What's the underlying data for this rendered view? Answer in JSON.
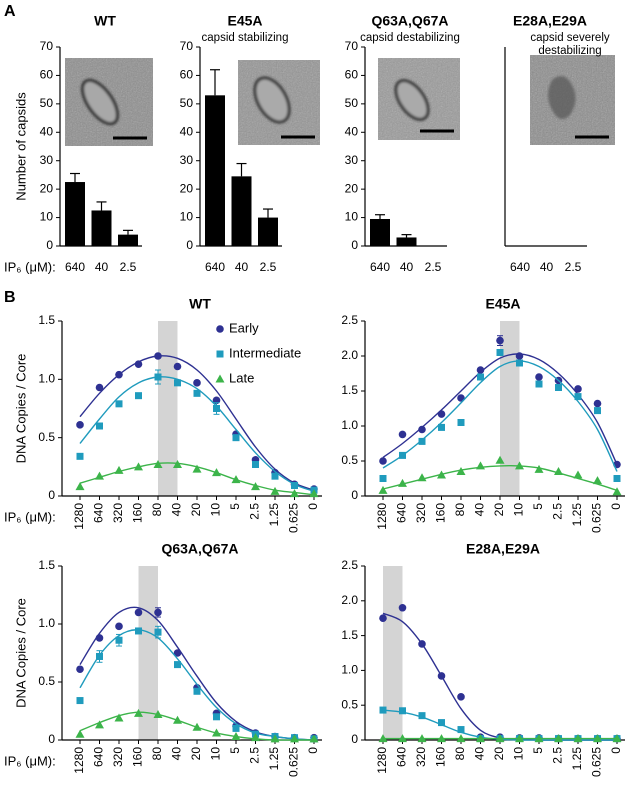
{
  "panel_labels": [
    "A",
    "B"
  ],
  "chart_data": [
    {
      "type": "bar",
      "title": "WT",
      "y_label": "Number of capsids",
      "x_label": "IP₆ (μM):",
      "categories": [
        "640",
        "40",
        "2.5"
      ],
      "values": [
        22.5,
        12.5,
        4
      ],
      "errors": [
        3,
        3,
        1.5
      ],
      "color": "#000000",
      "ylim": [
        0,
        70
      ],
      "yticks": [
        0,
        10,
        20,
        30,
        40,
        50,
        60,
        70
      ]
    },
    {
      "type": "bar",
      "title": "E45A",
      "subtitle": "capsid stabilizing",
      "categories": [
        "640",
        "40",
        "2.5"
      ],
      "values": [
        53,
        24.5,
        10
      ],
      "errors": [
        9,
        4.5,
        3
      ],
      "color": "#000000",
      "ylim": [
        0,
        70
      ],
      "yticks": [
        0,
        10,
        20,
        30,
        40,
        50,
        60,
        70
      ]
    },
    {
      "type": "bar",
      "title": "Q63A,Q67A",
      "subtitle": "capsid destabilizing",
      "categories": [
        "640",
        "40",
        "2.5"
      ],
      "values": [
        9.5,
        3,
        0
      ],
      "errors": [
        1.5,
        1,
        null
      ],
      "color": "#000000",
      "ylim": [
        0,
        70
      ],
      "yticks": [
        0,
        10,
        20,
        30,
        40,
        50,
        60,
        70
      ]
    },
    {
      "type": "bar",
      "title": "E28A,E29A",
      "subtitle": "capsid severely destabilizing",
      "categories": [
        "640",
        "40",
        "2.5"
      ],
      "values": [
        0,
        0,
        0
      ],
      "color": "#000000",
      "ylim": [
        0,
        70
      ]
    },
    {
      "type": "line",
      "title": "WT",
      "y_label": "DNA Copies / Core",
      "x_label": "IP₆ (μM):",
      "legend": true,
      "highlight": [
        "80",
        "40"
      ],
      "categories": [
        "1280",
        "640",
        "320",
        "160",
        "80",
        "40",
        "20",
        "10",
        "5",
        "2.5",
        "1.25",
        "0.625",
        "0"
      ],
      "ylim": [
        0,
        1.5
      ],
      "yticks": [
        0,
        0.5,
        {
          "value": 1,
          "label": "1.0"
        },
        1.5
      ],
      "series": [
        {
          "name": "Early",
          "color": "#2e3192",
          "marker": "circle",
          "values": [
            0.61,
            0.93,
            1.04,
            1.13,
            1.2,
            1.11,
            0.97,
            0.82,
            0.53,
            0.31,
            0.2,
            0.1,
            0.06
          ],
          "fit": [
            0.68,
            0.88,
            1.04,
            1.15,
            1.2,
            1.18,
            1.08,
            0.9,
            0.66,
            0.42,
            0.23,
            0.11,
            0.05
          ]
        },
        {
          "name": "Intermediate",
          "color": "#1f9bbd",
          "marker": "square",
          "values": [
            0.34,
            0.6,
            0.79,
            0.86,
            1.02,
            0.97,
            0.88,
            0.75,
            0.5,
            0.27,
            0.17,
            0.09,
            0.05
          ],
          "errors": [
            null,
            null,
            null,
            null,
            0.06,
            null,
            null,
            0.05,
            null,
            null,
            null,
            null,
            null
          ],
          "fit": [
            0.45,
            0.66,
            0.85,
            0.97,
            1.02,
            1.0,
            0.92,
            0.77,
            0.57,
            0.37,
            0.21,
            0.1,
            0.04
          ]
        },
        {
          "name": "Late",
          "color": "#3cb44a",
          "marker": "triangle",
          "values": [
            0.08,
            0.17,
            0.22,
            0.25,
            0.27,
            0.27,
            0.23,
            0.2,
            0.14,
            0.08,
            0.04,
            0.02,
            0.02
          ],
          "fit": [
            0.11,
            0.16,
            0.21,
            0.25,
            0.28,
            0.28,
            0.25,
            0.2,
            0.14,
            0.09,
            0.05,
            0.03,
            0.01
          ]
        }
      ]
    },
    {
      "type": "line",
      "title": "E45A",
      "legend": false,
      "highlight": [
        "20",
        "10"
      ],
      "categories": [
        "1280",
        "640",
        "320",
        "160",
        "80",
        "40",
        "20",
        "10",
        "5",
        "2.5",
        "1.25",
        "0.625",
        "0"
      ],
      "ylim": [
        0,
        2.5
      ],
      "yticks": [
        0,
        0.5,
        {
          "value": 1,
          "label": "1.0"
        },
        1.5,
        {
          "value": 2,
          "label": "2.0"
        },
        2.5
      ],
      "series": [
        {
          "name": "Early",
          "color": "#2e3192",
          "marker": "circle",
          "values": [
            0.5,
            0.88,
            0.95,
            1.17,
            1.4,
            1.8,
            2.22,
            2.0,
            1.7,
            1.65,
            1.53,
            1.32,
            0.45
          ],
          "errors": [
            null,
            null,
            null,
            null,
            null,
            null,
            0.07,
            null,
            null,
            null,
            null,
            null,
            null
          ],
          "fit": [
            0.55,
            0.75,
            0.98,
            1.23,
            1.5,
            1.77,
            1.97,
            2.03,
            1.95,
            1.75,
            1.45,
            1.05,
            0.45
          ]
        },
        {
          "name": "Intermediate",
          "color": "#1f9bbd",
          "marker": "square",
          "values": [
            0.25,
            0.58,
            0.78,
            0.98,
            1.05,
            1.7,
            2.05,
            1.9,
            1.6,
            1.55,
            1.42,
            1.22,
            0.25
          ],
          "fit": [
            0.4,
            0.58,
            0.8,
            1.05,
            1.33,
            1.62,
            1.85,
            1.93,
            1.85,
            1.65,
            1.35,
            0.95,
            0.35
          ]
        },
        {
          "name": "Late",
          "color": "#3cb44a",
          "marker": "triangle",
          "values": [
            0.08,
            0.18,
            0.26,
            0.3,
            0.35,
            0.43,
            0.51,
            0.43,
            0.38,
            0.35,
            0.3,
            0.22,
            0.06
          ],
          "fit": [
            0.1,
            0.17,
            0.24,
            0.31,
            0.37,
            0.41,
            0.43,
            0.43,
            0.4,
            0.33,
            0.25,
            0.17,
            0.08
          ]
        }
      ]
    },
    {
      "type": "line",
      "title": "Q63A,Q67A",
      "y_label": "DNA Copies / Core",
      "x_label": "IP₆ (μM):",
      "legend": false,
      "highlight": [
        "160",
        "80"
      ],
      "categories": [
        "1280",
        "640",
        "320",
        "160",
        "80",
        "40",
        "20",
        "10",
        "5",
        "2.5",
        "1.25",
        "0.625",
        "0"
      ],
      "ylim": [
        0,
        1.5
      ],
      "yticks": [
        0,
        0.5,
        {
          "value": 1,
          "label": "1.0"
        },
        1.5
      ],
      "series": [
        {
          "name": "Early",
          "color": "#2e3192",
          "marker": "circle",
          "values": [
            0.61,
            0.88,
            0.98,
            1.1,
            1.1,
            0.75,
            0.45,
            0.23,
            0.12,
            0.06,
            0.03,
            0.02,
            0.02
          ],
          "errors": [
            null,
            null,
            null,
            null,
            0.04,
            null,
            null,
            null,
            null,
            null,
            null,
            null,
            null
          ],
          "fit": [
            0.65,
            0.92,
            1.1,
            1.14,
            1.03,
            0.8,
            0.55,
            0.32,
            0.16,
            0.07,
            0.03,
            0.01,
            0
          ]
        },
        {
          "name": "Intermediate",
          "color": "#1f9bbd",
          "marker": "square",
          "values": [
            0.34,
            0.72,
            0.86,
            0.94,
            0.93,
            0.65,
            0.42,
            0.2,
            0.1,
            0.05,
            0.03,
            0.02,
            0.01
          ],
          "errors": [
            null,
            0.05,
            0.05,
            null,
            0.05,
            null,
            null,
            null,
            null,
            null,
            null,
            null,
            null
          ],
          "fit": [
            0.45,
            0.73,
            0.9,
            0.95,
            0.88,
            0.7,
            0.48,
            0.28,
            0.14,
            0.06,
            0.03,
            0.01,
            0
          ]
        },
        {
          "name": "Late",
          "color": "#3cb44a",
          "marker": "triangle",
          "values": [
            0.05,
            0.13,
            0.19,
            0.23,
            0.22,
            0.17,
            0.11,
            0.06,
            0.03,
            0.02,
            0.01,
            0.01,
            0.01
          ],
          "fit": [
            0.08,
            0.15,
            0.21,
            0.24,
            0.22,
            0.17,
            0.11,
            0.06,
            0.03,
            0.01,
            0,
            0,
            0
          ]
        }
      ]
    },
    {
      "type": "line",
      "title": "E28A,E29A",
      "legend": false,
      "highlight": [
        "1280",
        "640"
      ],
      "categories": [
        "1280",
        "640",
        "320",
        "160",
        "80",
        "40",
        "20",
        "10",
        "5",
        "2.5",
        "1.25",
        "0.625",
        "0"
      ],
      "ylim": [
        0,
        2.5
      ],
      "yticks": [
        0,
        0.5,
        {
          "value": 1,
          "label": "1.0"
        },
        1.5,
        {
          "value": 2,
          "label": "2.0"
        },
        2.5
      ],
      "series": [
        {
          "name": "Early",
          "color": "#2e3192",
          "marker": "circle",
          "values": [
            1.75,
            1.9,
            1.38,
            0.92,
            0.62,
            0.04,
            0.04,
            0.03,
            0.03,
            0.02,
            0.02,
            0.02,
            0.02
          ],
          "fit": [
            1.82,
            1.7,
            1.38,
            0.92,
            0.45,
            0.14,
            0.03,
            0.01,
            0,
            0,
            0,
            0,
            0
          ]
        },
        {
          "name": "Intermediate",
          "color": "#1f9bbd",
          "marker": "square",
          "values": [
            0.43,
            0.42,
            0.35,
            0.25,
            0.15,
            0.02,
            0.02,
            0.02,
            0.02,
            0.02,
            0.02,
            0.02,
            0.02
          ],
          "fit": [
            0.43,
            0.4,
            0.33,
            0.22,
            0.11,
            0.04,
            0.01,
            0,
            0,
            0,
            0,
            0,
            0
          ]
        },
        {
          "name": "Late",
          "color": "#3cb44a",
          "marker": "triangle",
          "values": [
            0.02,
            0.02,
            0.02,
            0.02,
            0.02,
            0.02,
            0.02,
            0.02,
            0.02,
            0.02,
            0.02,
            0.02,
            0.02
          ],
          "fit": [
            0.02,
            0.02,
            0.02,
            0.02,
            0.02,
            0.02,
            0.02,
            0.02,
            0.02,
            0.02,
            0.02,
            0.02,
            0.02
          ]
        }
      ]
    }
  ]
}
